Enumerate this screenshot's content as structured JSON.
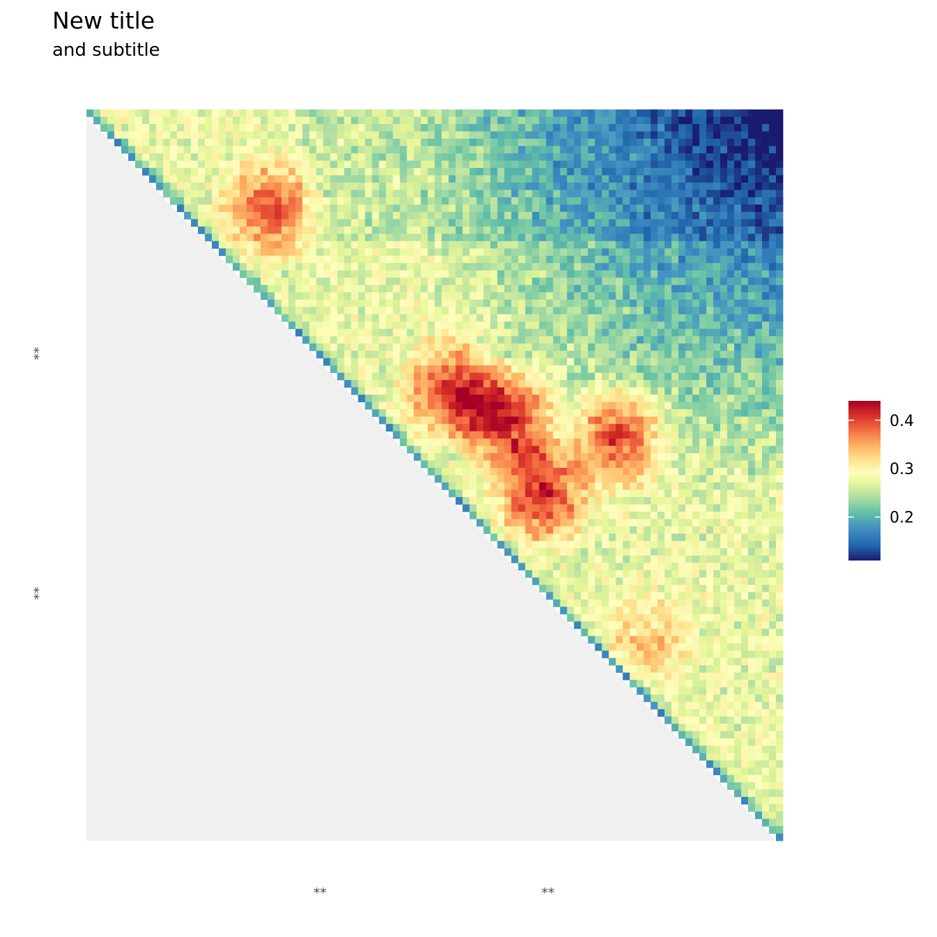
{
  "title": "New title",
  "subtitle": "and subtitle",
  "chart_data": {
    "type": "heatmap",
    "title": "New title",
    "subtitle": "and subtitle",
    "xlabel": "",
    "ylabel": "",
    "x_tick_labels": [
      "**",
      "**"
    ],
    "y_tick_labels": [
      "**",
      "**"
    ],
    "grid": false,
    "lower_triangle_fill": "#f0f0f0",
    "colorscale": {
      "name": "Spectral",
      "colors": [
        "#5e4fa2",
        "#3288bd",
        "#66c2a5",
        "#abdda4",
        "#e6f598",
        "#ffffbf",
        "#fee08b",
        "#fdae61",
        "#f46d43",
        "#d53e4f",
        "#9e0142"
      ],
      "low_color": "#1a1a6e",
      "mid_color": "#f7f7bf",
      "high_color": "#a50026"
    },
    "legend": {
      "position": "right",
      "range": [
        0.11,
        0.44
      ],
      "ticks": [
        {
          "value": 0.2,
          "label": "0.2"
        },
        {
          "value": 0.3,
          "label": "0.3"
        },
        {
          "value": 0.4,
          "label": "0.4"
        }
      ]
    },
    "matrix": {
      "size": 100,
      "structure": "upper-triangular",
      "base_range": [
        0.24,
        0.3
      ],
      "diagonal_range": [
        0.16,
        0.22
      ],
      "far_corner_value": 0.12,
      "hotspots": [
        {
          "row": 13,
          "col": 26,
          "peak": 0.4
        },
        {
          "row": 38,
          "col": 52,
          "peak": 0.42
        },
        {
          "row": 42,
          "col": 60,
          "peak": 0.43
        },
        {
          "row": 52,
          "col": 65,
          "peak": 0.42
        },
        {
          "row": 44,
          "col": 76,
          "peak": 0.42
        },
        {
          "row": 72,
          "col": 80,
          "peak": 0.35
        }
      ]
    }
  }
}
